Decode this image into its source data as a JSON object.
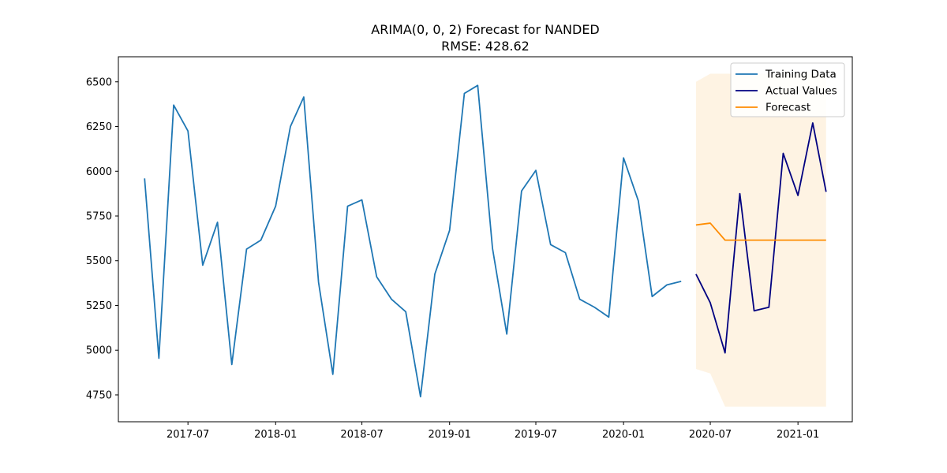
{
  "chart_data": {
    "type": "line",
    "title": "ARIMA(0, 0, 2) Forecast for NANDED",
    "subtitle": "RMSE: 428.62",
    "xlabel": "",
    "ylabel": "",
    "xlim": [
      "2017-02-05",
      "2021-04-25"
    ],
    "ylim": [
      4600,
      6640
    ],
    "x_ticks": [
      "2017-07",
      "2018-01",
      "2018-07",
      "2019-01",
      "2019-07",
      "2020-01",
      "2020-07",
      "2021-01"
    ],
    "y_ticks": [
      4750,
      5000,
      5250,
      5500,
      5750,
      6000,
      6250,
      6500
    ],
    "grid": false,
    "legend_position": "top-right",
    "series": [
      {
        "name": "Training Data",
        "color": "#1f77b4",
        "x": [
          "2017-04-01",
          "2017-05-01",
          "2017-06-01",
          "2017-07-01",
          "2017-08-01",
          "2017-09-01",
          "2017-10-01",
          "2017-11-01",
          "2017-12-01",
          "2018-01-01",
          "2018-02-01",
          "2018-03-01",
          "2018-04-01",
          "2018-05-01",
          "2018-06-01",
          "2018-07-01",
          "2018-08-01",
          "2018-09-01",
          "2018-10-01",
          "2018-11-01",
          "2018-12-01",
          "2019-01-01",
          "2019-02-01",
          "2019-03-01",
          "2019-04-01",
          "2019-05-01",
          "2019-06-01",
          "2019-07-01",
          "2019-08-01",
          "2019-09-01",
          "2019-10-01",
          "2019-11-01",
          "2019-12-01",
          "2020-01-01",
          "2020-02-01",
          "2020-03-01",
          "2020-04-01",
          "2020-05-01"
        ],
        "y": [
          5960,
          4955,
          6370,
          6225,
          5475,
          5715,
          4920,
          5565,
          5615,
          5805,
          6250,
          6415,
          5380,
          4865,
          5805,
          5840,
          5410,
          5285,
          5215,
          4740,
          5425,
          5670,
          6435,
          6480,
          5570,
          5090,
          5890,
          6005,
          5590,
          5545,
          5285,
          5240,
          5185,
          6075,
          5835,
          5300,
          5365,
          5385
        ]
      },
      {
        "name": "Actual Values",
        "color": "#000080",
        "x": [
          "2020-06-01",
          "2020-07-01",
          "2020-08-01",
          "2020-09-01",
          "2020-10-01",
          "2020-11-01",
          "2020-12-01",
          "2021-01-01",
          "2021-02-01",
          "2021-03-01"
        ],
        "y": [
          5425,
          5265,
          4985,
          5875,
          5220,
          5240,
          6100,
          5865,
          6270,
          5885
        ]
      },
      {
        "name": "Forecast",
        "color": "#ff8c00",
        "x": [
          "2020-06-01",
          "2020-07-01",
          "2020-08-01",
          "2020-09-01",
          "2020-10-01",
          "2020-11-01",
          "2020-12-01",
          "2021-01-01",
          "2021-02-01",
          "2021-03-01"
        ],
        "y": [
          5700,
          5710,
          5615,
          5615,
          5615,
          5615,
          5615,
          5615,
          5615,
          5615
        ]
      }
    ],
    "confidence_band": {
      "color": "#fdebd0",
      "x": [
        "2020-06-01",
        "2020-07-01",
        "2020-08-01",
        "2020-09-01",
        "2020-10-01",
        "2020-11-01",
        "2020-12-01",
        "2021-01-01",
        "2021-02-01",
        "2021-03-01"
      ],
      "lower": [
        4895,
        4870,
        4685,
        4685,
        4685,
        4685,
        4685,
        4685,
        4685,
        4685
      ],
      "upper": [
        6500,
        6545,
        6545,
        6545,
        6545,
        6545,
        6545,
        6545,
        6545,
        6545
      ]
    }
  }
}
